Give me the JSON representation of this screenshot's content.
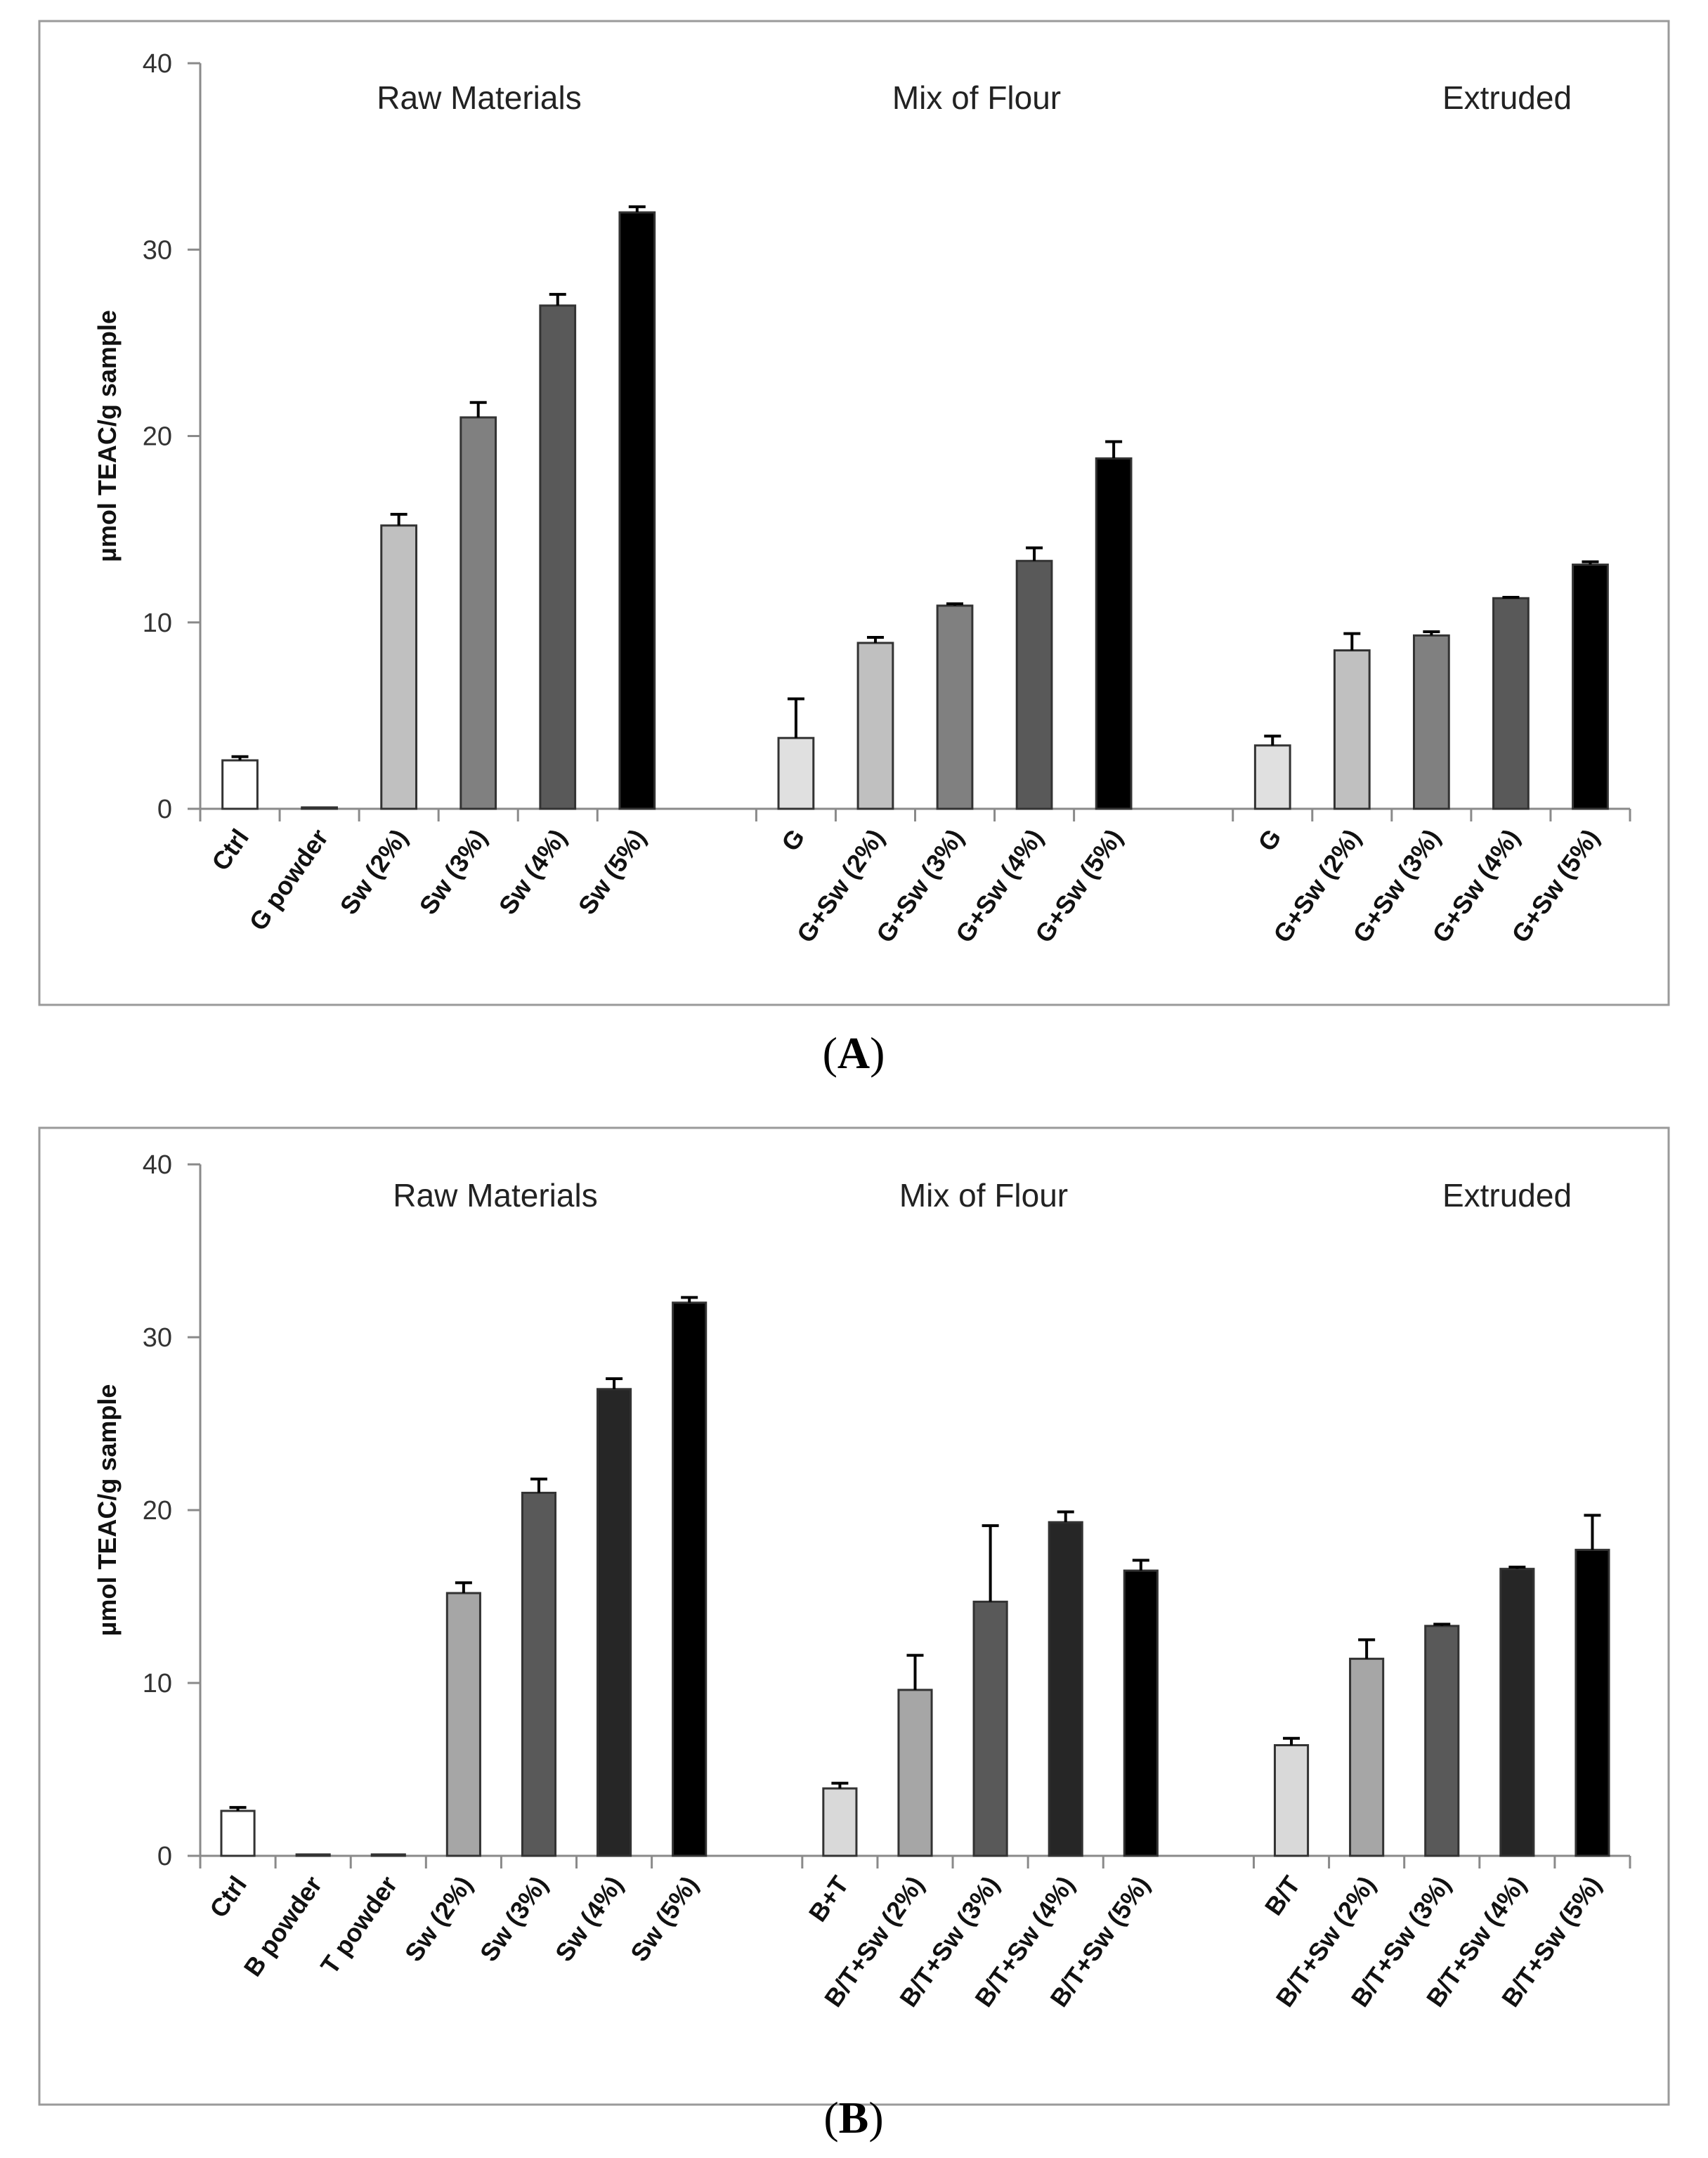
{
  "chart_data": [
    {
      "type": "bar",
      "panel_label": "A",
      "ylabel": "µmol TEAC/g sample",
      "ylim": [
        0,
        40
      ],
      "yticks": [
        "0",
        "10",
        "20",
        "30",
        "40"
      ],
      "grid": false,
      "groups": [
        {
          "title": "Raw Materials",
          "categories": [
            "Ctrl",
            "G powder",
            "Sw (2%)",
            "Sw  (3%)",
            "Sw  (4%)",
            "Sw  (5%)"
          ],
          "values": [
            2.6,
            0.0,
            15.2,
            21.0,
            27.0,
            32.0
          ],
          "errors": [
            0.2,
            0.0,
            0.6,
            0.8,
            0.6,
            0.3
          ],
          "colors": [
            "#ffffff",
            "#ffffff",
            "#c0c0c0",
            "#808080",
            "#595959",
            "#000000"
          ]
        },
        {
          "title": "Mix of Flour",
          "categories": [
            "G",
            "G+Sw (2%)",
            "G+Sw (3%)",
            "G+Sw (4%)",
            "G+Sw (5%)"
          ],
          "values": [
            3.8,
            8.9,
            10.9,
            13.3,
            18.8
          ],
          "errors": [
            2.1,
            0.3,
            0.1,
            0.7,
            0.9
          ],
          "colors": [
            "#e0e0e0",
            "#c0c0c0",
            "#808080",
            "#595959",
            "#000000"
          ]
        },
        {
          "title": "Extruded",
          "categories": [
            "G",
            "G+Sw  (2%)",
            "G+Sw (3%)",
            "G+Sw (4%)",
            "G+Sw  (5%)"
          ],
          "values": [
            3.4,
            8.5,
            9.3,
            11.3,
            13.1
          ],
          "errors": [
            0.5,
            0.9,
            0.2,
            0.05,
            0.15
          ],
          "colors": [
            "#e0e0e0",
            "#c0c0c0",
            "#808080",
            "#595959",
            "#000000"
          ]
        }
      ]
    },
    {
      "type": "bar",
      "panel_label": "B",
      "ylabel": "µmol TEAC/g sample",
      "ylim": [
        0,
        40
      ],
      "yticks": [
        "0",
        "10",
        "20",
        "30",
        "40"
      ],
      "grid": false,
      "groups": [
        {
          "title": "Raw Materials",
          "categories": [
            "Ctrl",
            "B powder",
            "T powder",
            "Sw (2%)",
            "Sw (3%)",
            "Sw (4%)",
            "Sw (5%)"
          ],
          "values": [
            2.6,
            0.0,
            0.0,
            15.2,
            21.0,
            27.0,
            32.0
          ],
          "errors": [
            0.2,
            0.0,
            0.0,
            0.6,
            0.8,
            0.6,
            0.3
          ],
          "colors": [
            "#ffffff",
            "#ffffff",
            "#ffffff",
            "#a6a6a6",
            "#595959",
            "#262626",
            "#000000"
          ]
        },
        {
          "title": "Mix of Flour",
          "categories": [
            "B+T",
            "B/T+Sw (2%)",
            "B/T+Sw (3%)",
            "B/T+Sw (4%)",
            "B/T+Sw (5%)"
          ],
          "values": [
            3.9,
            9.6,
            14.7,
            19.3,
            16.5
          ],
          "errors": [
            0.3,
            2.0,
            4.4,
            0.6,
            0.6
          ],
          "colors": [
            "#d9d9d9",
            "#a6a6a6",
            "#595959",
            "#262626",
            "#000000"
          ]
        },
        {
          "title": "Extruded",
          "categories": [
            "B/T",
            "B/T+Sw (2%)",
            "B/T+Sw (3%)",
            "B/T+Sw (4%)",
            "B/T+Sw (5%)"
          ],
          "values": [
            6.4,
            11.4,
            13.3,
            16.6,
            17.7
          ],
          "errors": [
            0.4,
            1.1,
            0.1,
            0.1,
            2.0
          ],
          "colors": [
            "#d9d9d9",
            "#a6a6a6",
            "#595959",
            "#262626",
            "#000000"
          ]
        }
      ]
    }
  ]
}
